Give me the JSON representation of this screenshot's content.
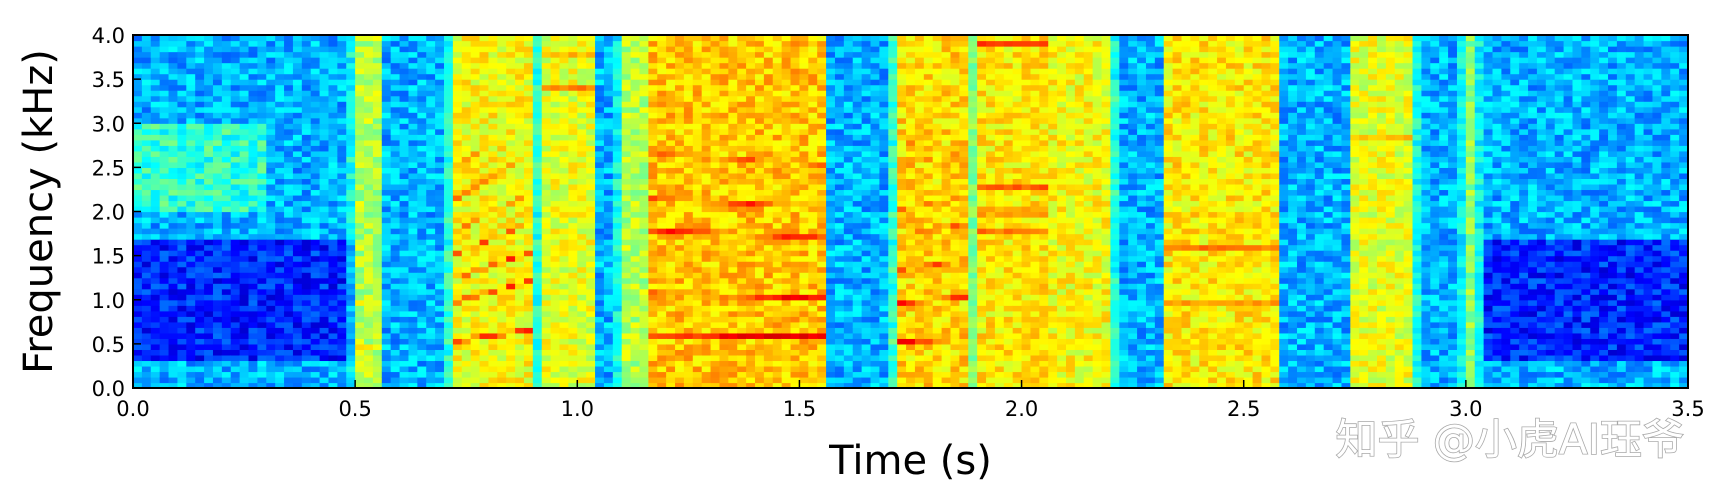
{
  "chart_data": {
    "type": "heatmap",
    "title": "",
    "xlabel": "Time (s)",
    "ylabel": "Frequency (kHz)",
    "xlim": [
      0.0,
      3.5
    ],
    "ylim": [
      0.0,
      4.0
    ],
    "x_ticks": [
      0.0,
      0.5,
      1.0,
      1.5,
      2.0,
      2.5,
      3.0,
      3.5
    ],
    "x_tick_labels": [
      "0.0",
      "0.5",
      "1.0",
      "1.5",
      "2.0",
      "2.5",
      "3.0",
      "3.5"
    ],
    "y_ticks": [
      0.0,
      0.5,
      1.0,
      1.5,
      2.0,
      2.5,
      3.0,
      3.5,
      4.0
    ],
    "y_tick_labels": [
      "0.0",
      "0.5",
      "1.0",
      "1.5",
      "2.0",
      "2.5",
      "3.0",
      "3.5",
      "4.0"
    ],
    "colormap": "jet",
    "grid": false,
    "value_range": [
      0,
      1
    ],
    "segments": [
      {
        "start": 0.5,
        "end": 0.55,
        "level": 0.55,
        "harmonics": [
          0.45,
          0.95
        ],
        "harmonic_level": 0.75,
        "pitch_slope": 0.0
      },
      {
        "start": 0.72,
        "end": 0.9,
        "level": 0.62,
        "harmonics": [
          0.6,
          1.1,
          1.4,
          1.7,
          2.0,
          2.4,
          2.8
        ],
        "harmonic_level": 0.9,
        "pitch_slope": 0.45
      },
      {
        "start": 0.93,
        "end": 1.03,
        "level": 0.6,
        "harmonics": [
          3.8,
          3.4,
          3.0
        ],
        "harmonic_level": 0.82,
        "pitch_slope": 0.0
      },
      {
        "start": 1.1,
        "end": 1.15,
        "level": 0.55,
        "harmonics": [
          3.0,
          3.5
        ],
        "harmonic_level": 0.72,
        "pitch_slope": 0.0
      },
      {
        "start": 1.17,
        "end": 1.55,
        "level": 0.68,
        "harmonics": [
          0.6,
          1.05,
          1.75,
          2.1,
          2.6
        ],
        "harmonic_level": 0.93,
        "pitch_slope": -0.1
      },
      {
        "start": 1.72,
        "end": 1.88,
        "level": 0.66,
        "harmonics": [
          0.55,
          1.0,
          1.4,
          1.8,
          2.1,
          2.6,
          2.85
        ],
        "harmonic_level": 0.9,
        "pitch_slope": 0.15
      },
      {
        "start": 1.9,
        "end": 2.05,
        "level": 0.64,
        "harmonics": [
          2.0,
          2.3,
          1.8,
          3.9
        ],
        "harmonic_level": 0.96,
        "pitch_slope": 0.0
      },
      {
        "start": 2.0,
        "end": 2.2,
        "level": 0.62,
        "harmonics": [
          0.5,
          0.8,
          1.2
        ],
        "harmonic_level": 0.82,
        "pitch_slope": 0.0
      },
      {
        "start": 2.33,
        "end": 2.57,
        "level": 0.64,
        "harmonics": [
          0.5,
          0.95,
          1.25,
          1.6,
          1.95,
          2.3
        ],
        "harmonic_level": 0.88,
        "pitch_slope": 0.0
      },
      {
        "start": 2.75,
        "end": 2.88,
        "level": 0.6,
        "harmonics": [
          0.5,
          1.0,
          1.75,
          2.3,
          2.85,
          3.5
        ],
        "harmonic_level": 0.82,
        "pitch_slope": 0.0
      },
      {
        "start": 3.0,
        "end": 3.02,
        "level": 0.52,
        "harmonics": [
          2.5
        ],
        "harmonic_level": 0.7,
        "pitch_slope": 0.0
      }
    ],
    "background_level": 0.3,
    "noise_band": {
      "low": 0.3,
      "high": 1.7,
      "level": 0.14
    }
  },
  "watermark": {
    "text": "知乎 @小虎AI珏爷"
  }
}
